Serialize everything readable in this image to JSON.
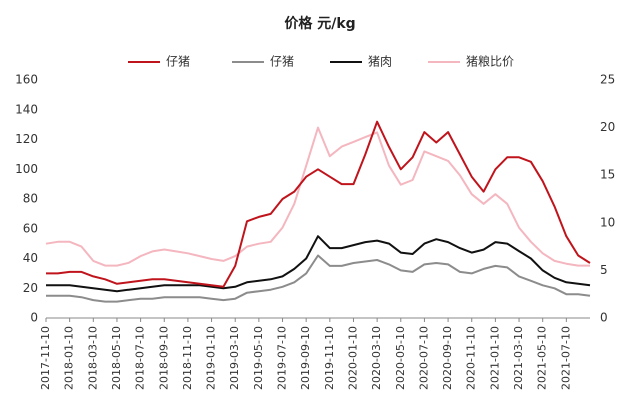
{
  "chart_data": {
    "type": "line",
    "title": "价格 元/kg",
    "categories": [
      "2017-11-10",
      null,
      "2018-01-10",
      null,
      "2018-03-10",
      null,
      "2018-05-10",
      null,
      "2018-07-10",
      null,
      "2018-09-10",
      null,
      "2018-11-10",
      null,
      "2019-01-10",
      null,
      "2019-03-10",
      null,
      "2019-05-10",
      null,
      "2019-07-10",
      null,
      "2019-09-10",
      null,
      "2019-11-10",
      null,
      "2020-01-10",
      null,
      "2020-03-10",
      null,
      "2020-05-10",
      null,
      "2020-07-10",
      null,
      "2020-09-10",
      null,
      "2020-11-10",
      null,
      "2021-01-10",
      null,
      "2021-03-10",
      null,
      "2021-05-10",
      null,
      "2021-07-10",
      null,
      null
    ],
    "series": [
      {
        "name": "仔猪",
        "color": "#c0141c",
        "values": [
          30,
          30,
          31,
          31,
          28,
          26,
          23,
          24,
          25,
          26,
          26,
          25,
          24,
          23,
          22,
          21,
          35,
          65,
          68,
          70,
          80,
          85,
          95,
          100,
          95,
          90,
          90,
          110,
          132,
          115,
          100,
          108,
          125,
          118,
          125,
          110,
          95,
          85,
          100,
          108,
          108,
          105,
          92,
          75,
          55,
          42,
          37
        ]
      },
      {
        "name": "仔猪",
        "color": "#8c8c8c",
        "values": [
          15,
          15,
          15,
          14,
          12,
          11,
          11,
          12,
          13,
          13,
          14,
          14,
          14,
          14,
          13,
          12,
          13,
          17,
          18,
          19,
          21,
          24,
          30,
          42,
          35,
          35,
          37,
          38,
          39,
          36,
          32,
          31,
          36,
          37,
          36,
          31,
          30,
          33,
          35,
          34,
          28,
          25,
          22,
          20,
          16,
          16,
          15
        ]
      },
      {
        "name": "猪肉",
        "color": "#111111",
        "values": [
          22,
          22,
          22,
          21,
          20,
          19,
          18,
          19,
          20,
          21,
          22,
          22,
          22,
          22,
          21,
          20,
          21,
          24,
          25,
          26,
          28,
          33,
          40,
          55,
          47,
          47,
          49,
          51,
          52,
          50,
          44,
          43,
          50,
          53,
          51,
          47,
          44,
          46,
          51,
          50,
          45,
          40,
          32,
          27,
          24,
          23,
          22
        ]
      },
      {
        "name": "猪粮比价",
        "color": "#f4b6bf",
        "axis": "y2",
        "values": [
          7.8,
          8,
          8,
          7.5,
          6,
          5.5,
          5.5,
          5.8,
          6.5,
          7,
          7.2,
          7,
          6.8,
          6.5,
          6.2,
          6,
          6.5,
          7.5,
          7.8,
          8,
          9.5,
          12,
          16,
          20,
          17,
          18,
          18.5,
          19,
          19.5,
          16,
          14,
          14.5,
          17.5,
          17,
          16.5,
          15,
          13,
          12,
          13,
          12,
          9.5,
          8,
          6.8,
          6,
          5.7,
          5.5,
          5.5
        ]
      }
    ],
    "ylim": [
      0,
      160
    ],
    "yticks": [
      0,
      20,
      40,
      60,
      80,
      100,
      120,
      140,
      160
    ],
    "y2lim": [
      0,
      25
    ],
    "y2ticks": [
      0,
      5,
      10,
      15,
      20,
      25
    ],
    "grid": false,
    "legend": "top"
  }
}
